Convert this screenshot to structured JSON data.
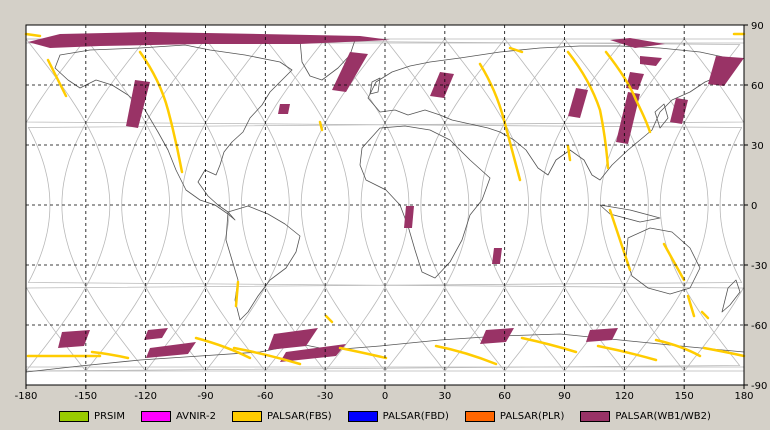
{
  "map": {
    "lon_ticks": [
      "-180",
      "-150",
      "-120",
      "-90",
      "-60",
      "-30",
      "0",
      "30",
      "60",
      "90",
      "120",
      "150",
      "180"
    ],
    "lat_ticks": [
      "90",
      "60",
      "30",
      "0",
      "-30",
      "-60",
      "-90"
    ],
    "lon_range": [
      -180,
      180
    ],
    "lat_range": [
      -90,
      90
    ],
    "grid": "dashed",
    "colors": {
      "background": "#ffffff",
      "coastline": "#555555",
      "orbit_track": "#b8b8b8",
      "grid": "#000000"
    }
  },
  "legend": {
    "items": [
      {
        "label": "PRSIM",
        "color": "#99cc00"
      },
      {
        "label": "AVNIR-2",
        "color": "#ff00ff"
      },
      {
        "label": "PALSAR(FBS)",
        "color": "#ffcc00"
      },
      {
        "label": "PALSAR(FBD)",
        "color": "#0000ff"
      },
      {
        "label": "PALSAR(PLR)",
        "color": "#ff6600"
      },
      {
        "label": "PALSAR(WB1/WB2)",
        "color": "#993366"
      }
    ]
  }
}
